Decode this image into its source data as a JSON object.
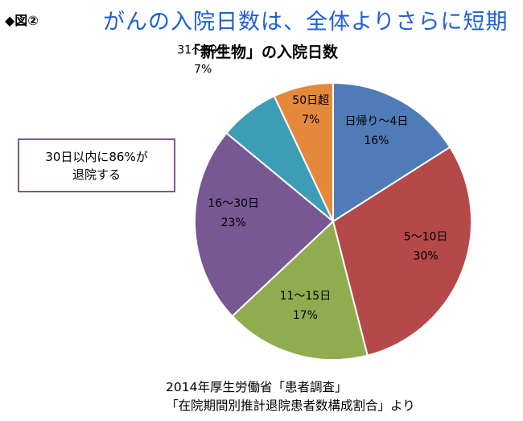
{
  "figure_label": "◆図②",
  "headline": "がんの入院日数は、全体よりさらに短期",
  "callout": {
    "line1": "30日以内に86%が",
    "line2": "退院する"
  },
  "source": {
    "line1": "2014年厚生労働省「患者調査」",
    "line2": "「在院期間別推計退院患者数構成割合」より"
  },
  "chart_data": {
    "type": "pie",
    "title": "「新生物」の入院日数",
    "unit": "%",
    "slices": [
      {
        "label": "日帰り〜4日",
        "value": 16,
        "value_label": "16%",
        "color": "#4f7cb6"
      },
      {
        "label": "5〜10日",
        "value": 30,
        "value_label": "30%",
        "color": "#b5494a"
      },
      {
        "label": "11〜15日",
        "value": 17,
        "value_label": "17%",
        "color": "#8fad4f"
      },
      {
        "label": "16〜30日",
        "value": 23,
        "value_label": "23%",
        "color": "#775892"
      },
      {
        "label": "31〜50日",
        "value": 7,
        "value_label": "7%",
        "color": "#3d9db7"
      },
      {
        "label": "50日超",
        "value": 7,
        "value_label": "7%",
        "color": "#e4883c"
      }
    ]
  }
}
